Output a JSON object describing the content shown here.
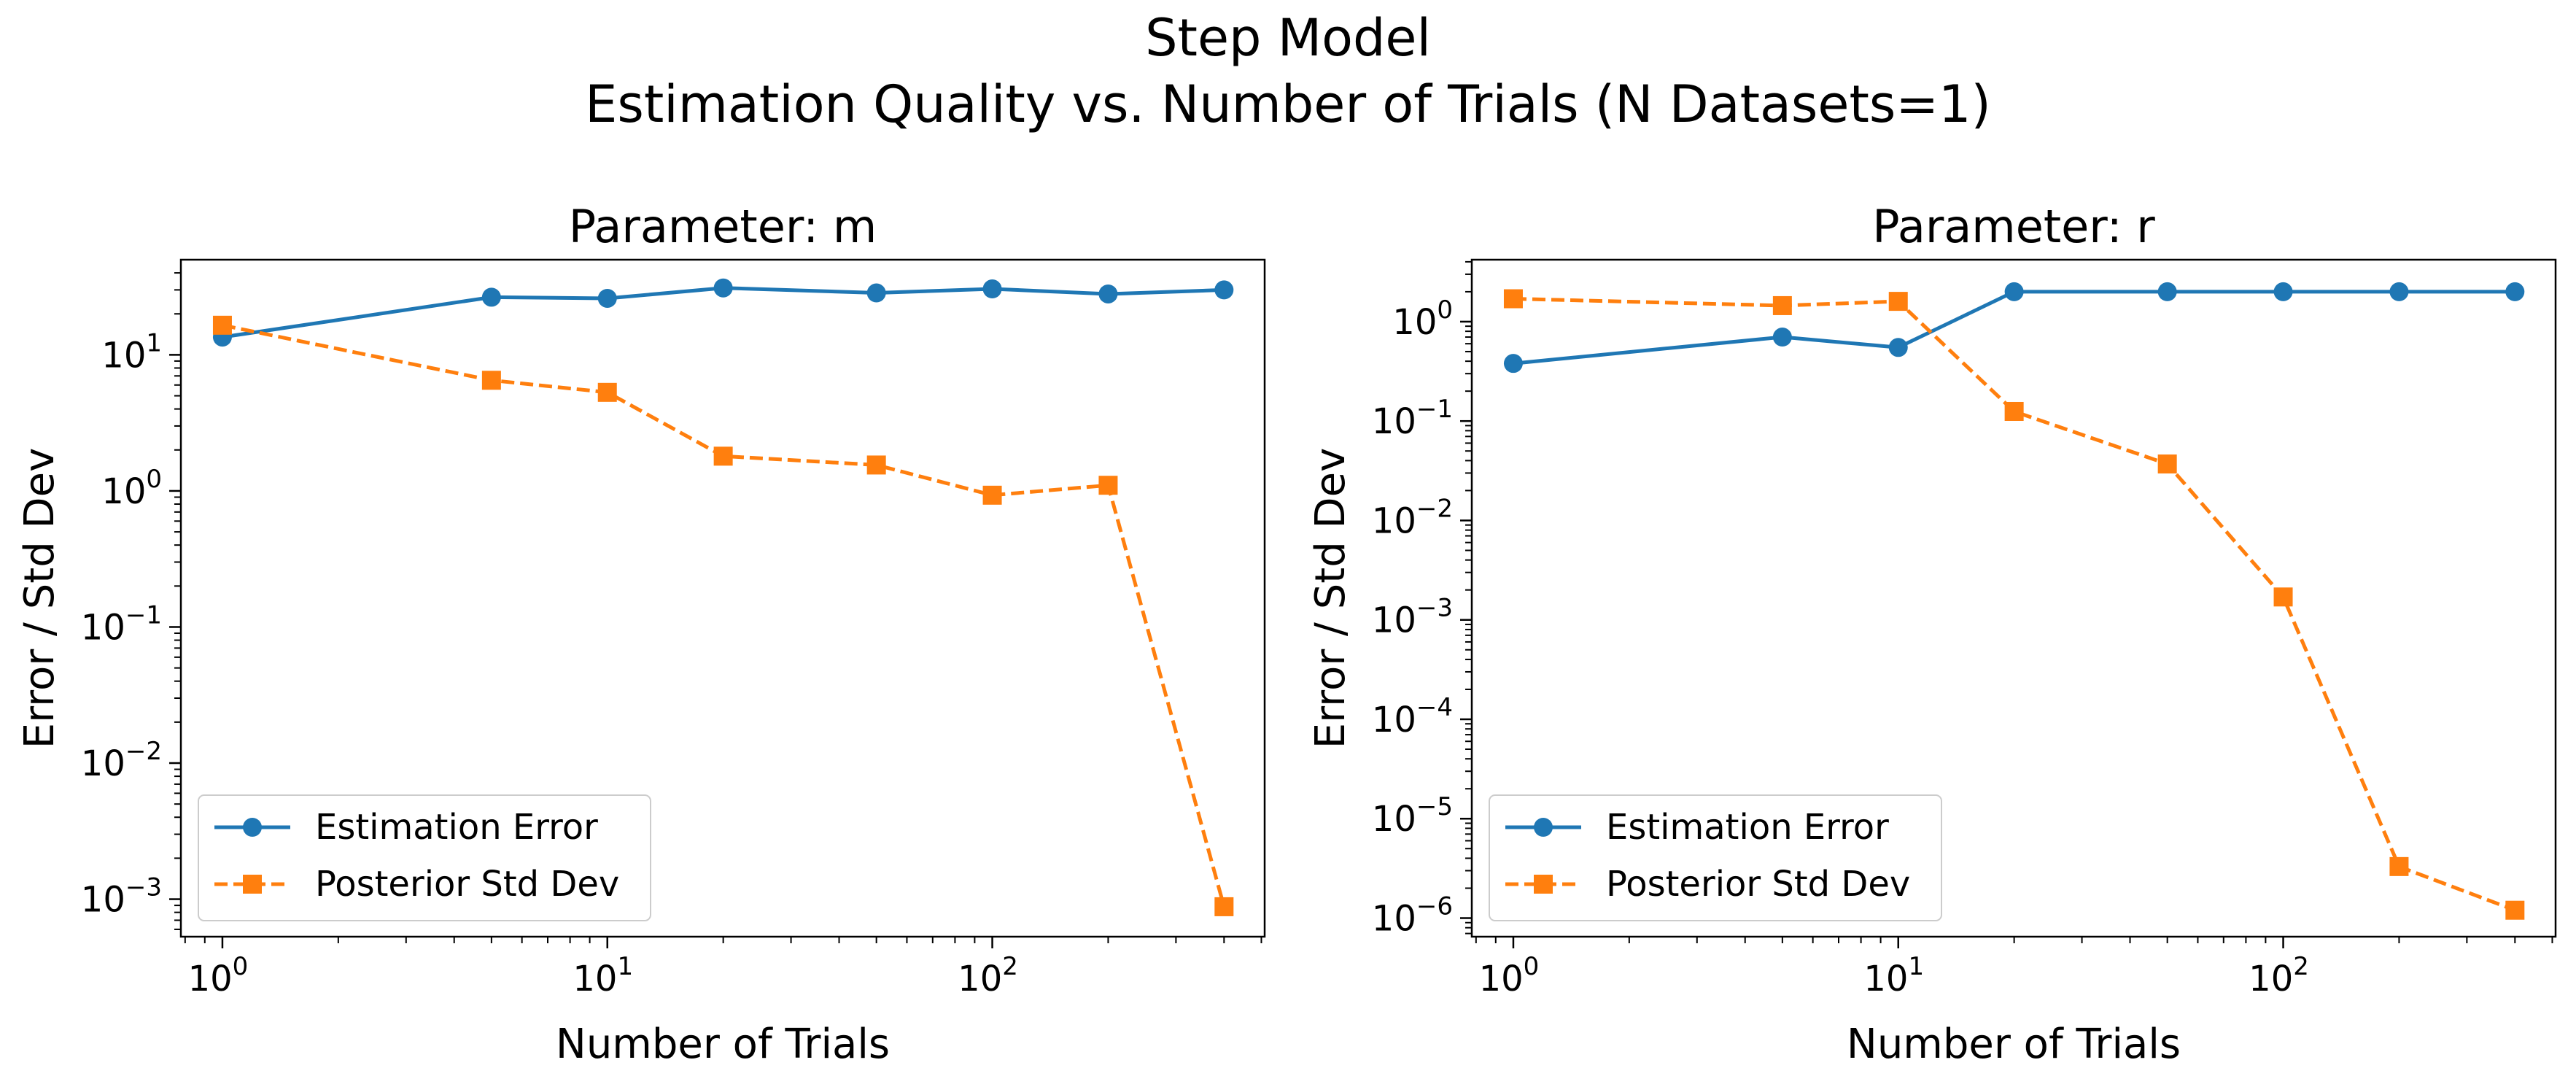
{
  "figure": {
    "suptitle_line1": "Step Model",
    "suptitle_line2": "Estimation Quality vs. Number of Trials (N Datasets=1)"
  },
  "colors": {
    "estimation_error": "#1f77b4",
    "posterior_std": "#ff7f0e",
    "axes": "#000000",
    "background": "#ffffff"
  },
  "chart_data": [
    {
      "type": "line",
      "title": "Parameter: m",
      "xlabel": "Number of Trials",
      "ylabel": "Error / Std Dev",
      "xscale": "log",
      "yscale": "log",
      "xlim": [
        0.78,
        510
      ],
      "ylim": [
        0.00053,
        50
      ],
      "xticks": [
        {
          "value": 1,
          "base": "10",
          "exp": "0"
        },
        {
          "value": 10,
          "base": "10",
          "exp": "1"
        },
        {
          "value": 100,
          "base": "10",
          "exp": "2"
        }
      ],
      "yticks": [
        {
          "value": 0.001,
          "base": "10",
          "exp": "−3"
        },
        {
          "value": 0.01,
          "base": "10",
          "exp": "−2"
        },
        {
          "value": 0.1,
          "base": "10",
          "exp": "−1"
        },
        {
          "value": 1,
          "base": "10",
          "exp": "0"
        },
        {
          "value": 10,
          "base": "10",
          "exp": "1"
        }
      ],
      "grid": false,
      "legend_position": "lower left",
      "x": [
        1,
        5,
        10,
        20,
        50,
        100,
        200,
        400
      ],
      "series": [
        {
          "name": "Estimation Error",
          "style": "solid",
          "marker": "circle",
          "color": "#1f77b4",
          "values": [
            13.5,
            26.5,
            26.0,
            31.0,
            28.5,
            30.5,
            28.0,
            30.0
          ]
        },
        {
          "name": "Posterior Std Dev",
          "style": "dashed",
          "marker": "square",
          "color": "#ff7f0e",
          "values": [
            16.5,
            6.5,
            5.3,
            1.8,
            1.55,
            0.93,
            1.1,
            0.00088
          ]
        }
      ]
    },
    {
      "type": "line",
      "title": "Parameter: r",
      "xlabel": "Number of Trials",
      "ylabel": "Error / Std Dev",
      "xscale": "log",
      "yscale": "log",
      "xlim": [
        0.78,
        510
      ],
      "ylim": [
        6.5e-07,
        4.2
      ],
      "xticks": [
        {
          "value": 1,
          "base": "10",
          "exp": "0"
        },
        {
          "value": 10,
          "base": "10",
          "exp": "1"
        },
        {
          "value": 100,
          "base": "10",
          "exp": "2"
        }
      ],
      "yticks": [
        {
          "value": 1e-06,
          "base": "10",
          "exp": "−6"
        },
        {
          "value": 1e-05,
          "base": "10",
          "exp": "−5"
        },
        {
          "value": 0.0001,
          "base": "10",
          "exp": "−4"
        },
        {
          "value": 0.001,
          "base": "10",
          "exp": "−3"
        },
        {
          "value": 0.01,
          "base": "10",
          "exp": "−2"
        },
        {
          "value": 0.1,
          "base": "10",
          "exp": "−1"
        },
        {
          "value": 1,
          "base": "10",
          "exp": "0"
        }
      ],
      "grid": false,
      "legend_position": "lower left",
      "x": [
        1,
        5,
        10,
        20,
        50,
        100,
        200,
        400
      ],
      "series": [
        {
          "name": "Estimation Error",
          "style": "solid",
          "marker": "circle",
          "color": "#1f77b4",
          "values": [
            0.38,
            0.7,
            0.55,
            2.0,
            2.0,
            2.0,
            2.0,
            2.0
          ]
        },
        {
          "name": "Posterior Std Dev",
          "style": "dashed",
          "marker": "square",
          "color": "#ff7f0e",
          "values": [
            1.7,
            1.45,
            1.6,
            0.125,
            0.037,
            0.0017,
            3.3e-06,
            1.2e-06
          ]
        }
      ]
    }
  ]
}
